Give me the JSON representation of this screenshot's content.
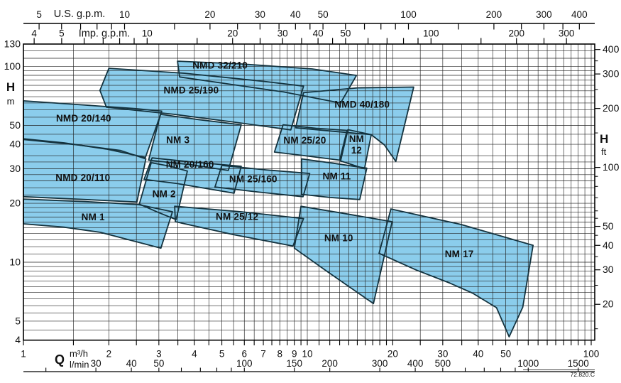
{
  "page": {
    "footnote": "72.820.C"
  },
  "colors": {
    "region_fill": "#8bcdec",
    "region_stroke": "#14333f",
    "grid": "#222222",
    "axis": "#000000",
    "label_text": "#122e3a"
  },
  "chart_data": {
    "type": "area",
    "title": "",
    "x_axis": {
      "label": "Q",
      "scale": "log",
      "units": [
        "m³/h",
        "l/min",
        "U.S. g.p.m.",
        "Imp. g.p.m."
      ],
      "range_m3h": [
        1,
        103
      ]
    },
    "y_axis": {
      "label": "H",
      "scale": "log",
      "units": [
        "m",
        "ft"
      ],
      "range_m": [
        4,
        130
      ]
    },
    "axes": {
      "top_us": {
        "title": "U.S. g.p.m.",
        "to_m3h": 0.22712,
        "ticks": [
          5,
          6,
          7,
          8,
          9,
          10,
          15,
          20,
          25,
          30,
          35,
          40,
          45,
          50,
          60,
          70,
          80,
          90,
          100,
          150,
          200,
          250,
          300,
          350,
          400
        ],
        "labels": [
          5,
          10,
          20,
          30,
          40,
          50,
          100,
          200,
          300,
          400
        ]
      },
      "top_imp": {
        "title": "Imp. g.p.m.",
        "to_m3h": 0.27276,
        "ticks": [
          4,
          5,
          6,
          7,
          8,
          9,
          10,
          15,
          20,
          25,
          30,
          35,
          40,
          45,
          50,
          60,
          70,
          80,
          90,
          100,
          150,
          200,
          250,
          300
        ],
        "labels": [
          4,
          5,
          10,
          20,
          30,
          40,
          50,
          100,
          200,
          300
        ]
      },
      "left": {
        "title": "H",
        "unit": "m",
        "labels": [
          130,
          100,
          50,
          40,
          30,
          20,
          10,
          5,
          4
        ]
      },
      "right": {
        "title": "H",
        "unit": "ft",
        "to_m": 0.3048,
        "labels": [
          400,
          300,
          200,
          100,
          50,
          40,
          30,
          20
        ],
        "minor_ticks": [
          350,
          250,
          150,
          90,
          80,
          70,
          60,
          55,
          45,
          35,
          25,
          15
        ]
      },
      "bottom_q": {
        "title": "Q",
        "unit": "m³/h",
        "labels": [
          1,
          2,
          3,
          4,
          5,
          6,
          7,
          8,
          9,
          10,
          20,
          30,
          40,
          50,
          100
        ]
      },
      "bottom_lmin": {
        "unit": "l/min",
        "to_m3h": 0.06,
        "ticks": [
          20,
          30,
          40,
          50,
          60,
          70,
          80,
          90,
          100,
          150,
          200,
          300,
          400,
          500,
          600,
          700,
          800,
          900,
          1000,
          1500
        ],
        "labels": [
          30,
          40,
          50,
          100,
          150,
          200,
          300,
          400,
          500,
          1000,
          1500
        ]
      }
    },
    "grid": {
      "q_lines": [
        1,
        1.5,
        2,
        2.5,
        3,
        3.5,
        4,
        4.5,
        5,
        5.5,
        6,
        6.5,
        7,
        7.5,
        8,
        8.5,
        9,
        9.5,
        10,
        11,
        12,
        13,
        14,
        15,
        16,
        17,
        18,
        19,
        20,
        25,
        30,
        35,
        40,
        45,
        50,
        55,
        60,
        65,
        70,
        75,
        80,
        85,
        90,
        95,
        100
      ],
      "h_lines": [
        4,
        4.5,
        5,
        5.5,
        6,
        6.5,
        7,
        7.5,
        8,
        8.5,
        9,
        9.5,
        10,
        11,
        12,
        13,
        14,
        15,
        16,
        17,
        18,
        19,
        20,
        22,
        24,
        26,
        28,
        30,
        32.5,
        35,
        40,
        45,
        50,
        55,
        60,
        65,
        70,
        75,
        80,
        85,
        90,
        95,
        100,
        110,
        120,
        130
      ]
    },
    "regions": [
      {
        "name": "NMD 32/210",
        "label_lines": [
          "NMD 32/210"
        ],
        "label_at": [
          4.93,
          101.0
        ],
        "points_q_h": [
          [
            3.49,
            106.3
          ],
          [
            5.85,
            102.9
          ],
          [
            10.4,
            97.0
          ],
          [
            14.9,
            89.9
          ],
          [
            13.1,
            65.0
          ],
          [
            8.25,
            74.0
          ],
          [
            5.21,
            81.5
          ],
          [
            3.55,
            88.3
          ]
        ]
      },
      {
        "name": "NMD 25/190",
        "label_lines": [
          "NMD 25/190"
        ],
        "label_at": [
          3.9,
          75.4
        ],
        "points_q_h": [
          [
            2.0,
            97.8
          ],
          [
            3.7,
            92.2
          ],
          [
            6.95,
            84.0
          ],
          [
            9.7,
            79.3
          ],
          [
            8.75,
            47.4
          ],
          [
            5.52,
            51.9
          ],
          [
            3.39,
            56.9
          ],
          [
            1.96,
            61.9
          ],
          [
            1.86,
            75.4
          ]
        ]
      },
      {
        "name": "NMD 40/180",
        "label_lines": [
          "NMD 40/180"
        ],
        "label_at": [
          15.6,
          63.9
        ],
        "points_q_h": [
          [
            9.7,
            73.4
          ],
          [
            15.1,
            77.7
          ],
          [
            23.7,
            78.4
          ],
          [
            20.5,
            32.7
          ],
          [
            18.7,
            39.7
          ],
          [
            16.8,
            44.8
          ],
          [
            12.4,
            46.6
          ],
          [
            9.1,
            48.6
          ]
        ]
      },
      {
        "name": "NMD 20/140",
        "label_lines": [
          "NMD 20/140"
        ],
        "label_at": [
          1.63,
          54.3
        ],
        "points_q_h": [
          [
            1.0,
            66.7
          ],
          [
            1.65,
            63.4
          ],
          [
            2.47,
            60.9
          ],
          [
            3.07,
            59.1
          ],
          [
            2.69,
            34.3
          ],
          [
            1.96,
            37.8
          ],
          [
            1.39,
            40.7
          ],
          [
            1.0,
            42.7
          ]
        ]
      },
      {
        "name": "NMD 20/110",
        "label_lines": [
          "NMD 20/110"
        ],
        "label_at": [
          1.62,
          27.0
        ],
        "points_q_h": [
          [
            1.0,
            42.3
          ],
          [
            1.56,
            39.7
          ],
          [
            2.2,
            37.2
          ],
          [
            2.7,
            33.7
          ],
          [
            2.51,
            20.3
          ],
          [
            1.65,
            20.9
          ],
          [
            1.0,
            21.6
          ]
        ]
      },
      {
        "name": "NM 1",
        "label_lines": [
          "NM 1"
        ],
        "label_at": [
          1.76,
          17.0
        ],
        "points_q_h": [
          [
            1.0,
            21.0
          ],
          [
            1.65,
            20.4
          ],
          [
            2.53,
            19.7
          ],
          [
            3.35,
            18.1
          ],
          [
            3.05,
            11.8
          ],
          [
            1.87,
            14.2
          ],
          [
            1.39,
            15.1
          ],
          [
            1.0,
            15.7
          ]
        ]
      },
      {
        "name": "NM 3",
        "label_lines": [
          "NM 3"
        ],
        "label_at": [
          3.5,
          42.0
        ],
        "points_q_h": [
          [
            3.04,
            56.9
          ],
          [
            4.14,
            53.5
          ],
          [
            5.85,
            50.3
          ],
          [
            5.27,
            29.4
          ],
          [
            3.87,
            31.5
          ],
          [
            2.76,
            33.2
          ]
        ]
      },
      {
        "name": "NM 20/160",
        "label_lines": [
          "NM 20/160"
        ],
        "label_at": [
          3.86,
          31.5
        ],
        "points_q_h": [
          [
            2.84,
            34.1
          ],
          [
            3.9,
            32.5
          ],
          [
            5.85,
            30.9
          ],
          [
            5.52,
            22.5
          ],
          [
            3.49,
            25.2
          ],
          [
            2.66,
            26.5
          ]
        ]
      },
      {
        "name": "NM 2",
        "label_lines": [
          "NM 2"
        ],
        "label_at": [
          3.13,
          22.3
        ],
        "points_q_h": [
          [
            2.82,
            32.2
          ],
          [
            3.29,
            30.9
          ],
          [
            3.78,
            29.2
          ],
          [
            3.45,
            16.5
          ],
          [
            2.97,
            18.0
          ],
          [
            2.56,
            19.8
          ]
        ]
      },
      {
        "name": "NM 25/20",
        "label_lines": [
          "NM 25/20"
        ],
        "label_at": [
          9.8,
          41.9
        ],
        "points_q_h": [
          [
            8.22,
            50.3
          ],
          [
            10.7,
            48.3
          ],
          [
            13.8,
            47.1
          ],
          [
            13.0,
            33.2
          ],
          [
            9.8,
            35.0
          ],
          [
            7.66,
            36.5
          ]
        ]
      },
      {
        "name": "NM 12",
        "label_lines": [
          "NM",
          "12"
        ],
        "label_at": [
          14.9,
          40.0
        ],
        "points_q_h": [
          [
            13.9,
            47.5
          ],
          [
            16.8,
            44.8
          ],
          [
            15.9,
            30.0
          ],
          [
            13.1,
            32.9
          ]
        ]
      },
      {
        "name": "NM 25/160",
        "label_lines": [
          "NM 25/160"
        ],
        "label_at": [
          6.45,
          26.6
        ],
        "points_q_h": [
          [
            5.0,
            31.2
          ],
          [
            7.16,
            29.6
          ],
          [
            10.2,
            28.4
          ],
          [
            9.66,
            21.6
          ],
          [
            6.76,
            22.8
          ],
          [
            4.73,
            24.2
          ]
        ]
      },
      {
        "name": "NM 11",
        "label_lines": [
          "NM 11"
        ],
        "label_at": [
          12.7,
          27.5
        ],
        "points_q_h": [
          [
            9.55,
            33.7
          ],
          [
            12.4,
            32.0
          ],
          [
            16.2,
            30.2
          ],
          [
            15.3,
            20.9
          ],
          [
            12.0,
            21.4
          ],
          [
            9.55,
            22.2
          ]
        ]
      },
      {
        "name": "NM 25/12",
        "label_lines": [
          "NM 25/12"
        ],
        "label_at": [
          5.66,
          17.1
        ],
        "points_q_h": [
          [
            3.41,
            19.3
          ],
          [
            5.85,
            18.1
          ],
          [
            9.7,
            16.7
          ],
          [
            8.9,
            12.1
          ],
          [
            5.52,
            13.8
          ],
          [
            3.43,
            16.1
          ]
        ]
      },
      {
        "name": "NM 10",
        "label_lines": [
          "NM 10"
        ],
        "label_at": [
          12.9,
          13.3
        ],
        "points_q_h": [
          [
            9.5,
            19.3
          ],
          [
            13.9,
            17.6
          ],
          [
            19.9,
            16.1
          ],
          [
            17.1,
            6.15
          ],
          [
            11.7,
            9.0
          ],
          [
            9.0,
            11.8
          ]
        ]
      },
      {
        "name": "NM 17",
        "label_lines": [
          "NM 17"
        ],
        "label_at": [
          34.3,
          11.0
        ],
        "points_q_h": [
          [
            19.7,
            18.7
          ],
          [
            34.7,
            15.6
          ],
          [
            62.4,
            12.2
          ],
          [
            57.4,
            5.9
          ],
          [
            51.4,
            4.16
          ],
          [
            46.4,
            5.86
          ],
          [
            38.2,
            6.95
          ],
          [
            31.6,
            7.85
          ],
          [
            24.3,
            9.1
          ],
          [
            17.9,
            11.1
          ]
        ]
      }
    ]
  }
}
